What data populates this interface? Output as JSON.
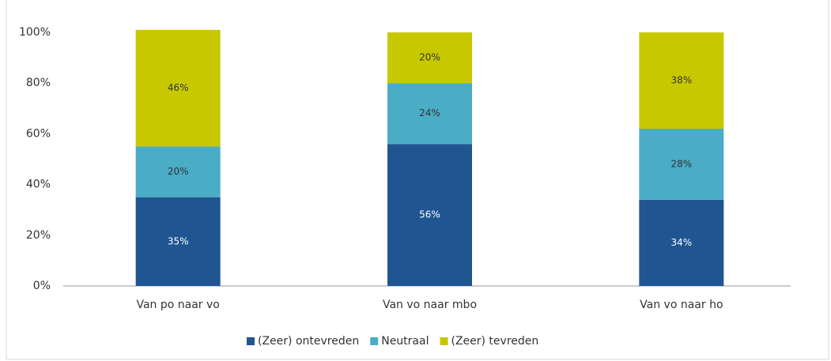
{
  "chart_data": {
    "type": "stacked_bar",
    "categories": [
      "Van po naar vo",
      "Van vo naar mbo",
      "Van vo naar ho"
    ],
    "series": [
      {
        "name": "(Zeer) ontevreden",
        "color": "#1f5591",
        "values": [
          35,
          56,
          34
        ],
        "value_labels": [
          "35%",
          "56%",
          "34%"
        ]
      },
      {
        "name": "Neutraal",
        "color": "#4bacc6",
        "values": [
          20,
          24,
          28
        ],
        "value_labels": [
          "20%",
          "24%",
          "28%"
        ]
      },
      {
        "name": "(Zeer) tevreden",
        "color": "#c8c800",
        "values": [
          46,
          20,
          38
        ],
        "value_labels": [
          "46%",
          "20%",
          "38%"
        ]
      }
    ],
    "ylim": [
      0,
      100
    ],
    "yticks": [
      {
        "value": 0,
        "label": "0%"
      },
      {
        "value": 20,
        "label": "20%"
      },
      {
        "value": 40,
        "label": "40%"
      },
      {
        "value": 60,
        "label": "60%"
      },
      {
        "value": 80,
        "label": "80%"
      },
      {
        "value": 100,
        "label": "100%"
      }
    ],
    "legend": "bottom"
  }
}
